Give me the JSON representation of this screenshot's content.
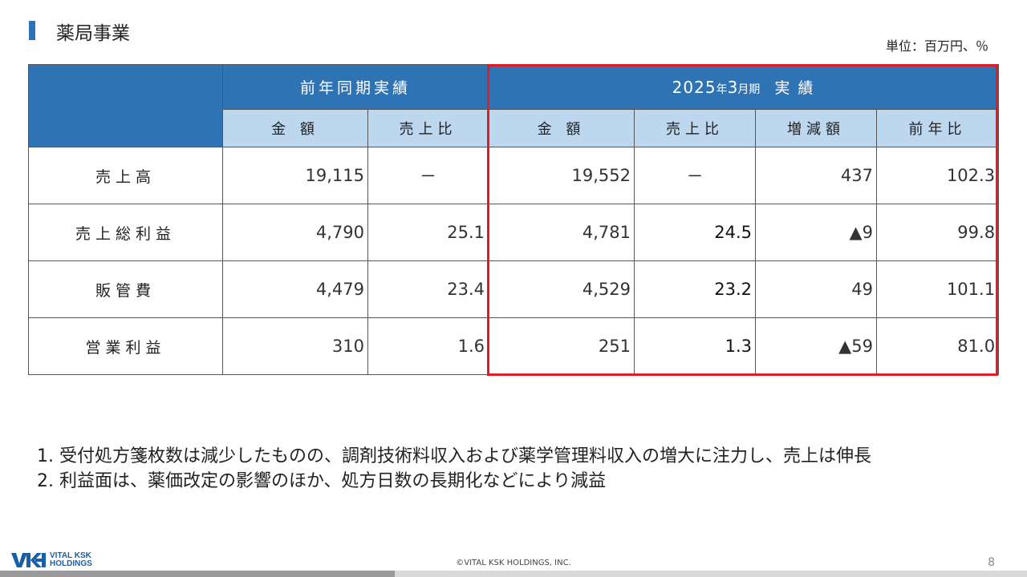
{
  "page_title": "薬局事業",
  "unit": "単位：百万円、％",
  "header": {
    "group_prev": "前年同期実績",
    "group_curr_year": "2025",
    "group_curr_year_suffix": "年",
    "group_curr_month": "3",
    "group_curr_month_suffix": "月期",
    "group_curr_label": "実 績",
    "sub": [
      "金 額",
      "売上比",
      "金 額",
      "売上比",
      "増減額",
      "前年比"
    ]
  },
  "rows": [
    {
      "label": "売上高",
      "cells": [
        "19,115",
        "－",
        "19,552",
        "－",
        "437",
        "102.3"
      ]
    },
    {
      "label": "売上総利益",
      "cells": [
        "4,790",
        "25.1",
        "4,781",
        "24.5",
        "▲9",
        "99.8"
      ]
    },
    {
      "label": "販管費",
      "cells": [
        "4,479",
        "23.4",
        "4,529",
        "23.2",
        "49",
        "101.1"
      ]
    },
    {
      "label": "営業利益",
      "cells": [
        "310",
        "1.6",
        "251",
        "1.3",
        "▲59",
        "81.0"
      ]
    }
  ],
  "notes": [
    "1. 受付処方箋枚数は減少したものの、調剤技術料収入および薬学管理料収入の増大に注力し、売上は伸長",
    "2. 利益面は、薬価改定の影響のほか、処方日数の長期化などにより減益"
  ],
  "footer": {
    "logo_line1": "VITAL KSK",
    "logo_line2": "HOLDINGS",
    "copyright": "©VITAL KSK HOLDINGS, INC.",
    "page_number": "8"
  },
  "colors": {
    "header_blue": "#2e74b5",
    "subheader_light_blue": "#bdd7ee",
    "highlight_red": "#e01d24"
  }
}
